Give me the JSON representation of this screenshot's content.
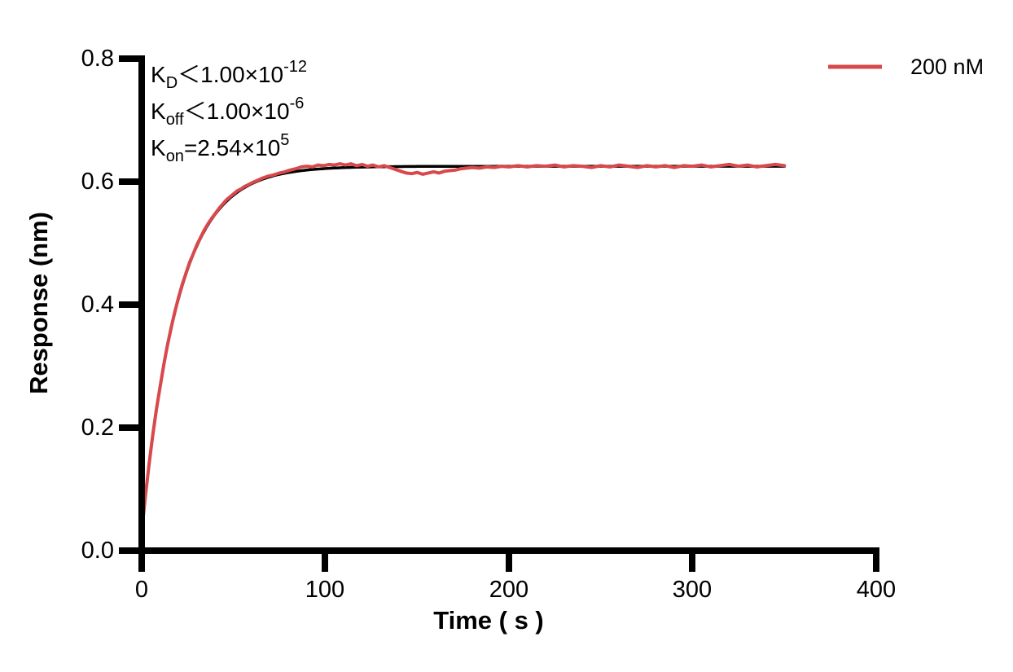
{
  "chart_data": {
    "type": "line",
    "title": "",
    "xlabel": "Time ( s )",
    "ylabel": "Response (nm)",
    "xlim": [
      0,
      400
    ],
    "ylim": [
      0.0,
      0.8
    ],
    "grid": false,
    "x_ticks": [
      "0",
      "100",
      "200",
      "300",
      "400"
    ],
    "y_ticks": [
      "0.0",
      "0.2",
      "0.4",
      "0.6",
      "0.8"
    ],
    "legend": {
      "position": "top-right",
      "entries": [
        {
          "label": "200 nM",
          "color": "#d9484b"
        }
      ]
    },
    "annotations": [
      {
        "base": "K",
        "sub": "D",
        "rest": "＜1.00×10",
        "sup": "-12"
      },
      {
        "base": "K",
        "sub": "off",
        "rest": "＜1.00×10",
        "sup": "-6"
      },
      {
        "base": "K",
        "sub": "on",
        "rest": "=2.54×10",
        "sup": "5"
      }
    ],
    "series": [
      {
        "name": "200 nM",
        "role": "measured",
        "color": "#d9484b",
        "points": [
          [
            0,
            0.03
          ],
          [
            2,
            0.088
          ],
          [
            4,
            0.14
          ],
          [
            6,
            0.187
          ],
          [
            8,
            0.229
          ],
          [
            10,
            0.266
          ],
          [
            12,
            0.302
          ],
          [
            14,
            0.334
          ],
          [
            16,
            0.362
          ],
          [
            18,
            0.388
          ],
          [
            20,
            0.411
          ],
          [
            22,
            0.432
          ],
          [
            24,
            0.45
          ],
          [
            26,
            0.468
          ],
          [
            28,
            0.482
          ],
          [
            30,
            0.497
          ],
          [
            32,
            0.509
          ],
          [
            34,
            0.521
          ],
          [
            36,
            0.531
          ],
          [
            38,
            0.54
          ],
          [
            40,
            0.548
          ],
          [
            42,
            0.556
          ],
          [
            44,
            0.563
          ],
          [
            46,
            0.57
          ],
          [
            48,
            0.575
          ],
          [
            50,
            0.58
          ],
          [
            52,
            0.585
          ],
          [
            54,
            0.588
          ],
          [
            56,
            0.592
          ],
          [
            58,
            0.595
          ],
          [
            60,
            0.598
          ],
          [
            63,
            0.602
          ],
          [
            66,
            0.606
          ],
          [
            69,
            0.609
          ],
          [
            72,
            0.611
          ],
          [
            75,
            0.614
          ],
          [
            78,
            0.616
          ],
          [
            81,
            0.619
          ],
          [
            84,
            0.621
          ],
          [
            87,
            0.624
          ],
          [
            90,
            0.625
          ],
          [
            93,
            0.624
          ],
          [
            96,
            0.627
          ],
          [
            99,
            0.626
          ],
          [
            102,
            0.628
          ],
          [
            105,
            0.627
          ],
          [
            108,
            0.629
          ],
          [
            111,
            0.627
          ],
          [
            114,
            0.629
          ],
          [
            117,
            0.626
          ],
          [
            120,
            0.628
          ],
          [
            123,
            0.625
          ],
          [
            126,
            0.627
          ],
          [
            129,
            0.624
          ],
          [
            132,
            0.626
          ],
          [
            135,
            0.623
          ],
          [
            138,
            0.62
          ],
          [
            141,
            0.617
          ],
          [
            144,
            0.614
          ],
          [
            147,
            0.613
          ],
          [
            150,
            0.615
          ],
          [
            153,
            0.612
          ],
          [
            156,
            0.614
          ],
          [
            159,
            0.616
          ],
          [
            162,
            0.614
          ],
          [
            165,
            0.617
          ],
          [
            168,
            0.618
          ],
          [
            171,
            0.619
          ],
          [
            174,
            0.621
          ],
          [
            177,
            0.622
          ],
          [
            180,
            0.623
          ],
          [
            184,
            0.622
          ],
          [
            188,
            0.624
          ],
          [
            192,
            0.623
          ],
          [
            196,
            0.625
          ],
          [
            200,
            0.624
          ],
          [
            205,
            0.626
          ],
          [
            210,
            0.624
          ],
          [
            215,
            0.626
          ],
          [
            220,
            0.625
          ],
          [
            225,
            0.627
          ],
          [
            230,
            0.624
          ],
          [
            235,
            0.626
          ],
          [
            240,
            0.625
          ],
          [
            245,
            0.623
          ],
          [
            250,
            0.626
          ],
          [
            255,
            0.624
          ],
          [
            260,
            0.627
          ],
          [
            265,
            0.625
          ],
          [
            270,
            0.623
          ],
          [
            275,
            0.626
          ],
          [
            280,
            0.624
          ],
          [
            285,
            0.626
          ],
          [
            290,
            0.623
          ],
          [
            295,
            0.626
          ],
          [
            300,
            0.625
          ],
          [
            305,
            0.627
          ],
          [
            310,
            0.624
          ],
          [
            315,
            0.626
          ],
          [
            320,
            0.628
          ],
          [
            325,
            0.625
          ],
          [
            330,
            0.627
          ],
          [
            335,
            0.624
          ],
          [
            340,
            0.626
          ],
          [
            345,
            0.628
          ],
          [
            350,
            0.626
          ]
        ]
      },
      {
        "name": "fit",
        "role": "fit",
        "color": "#000000",
        "model": "one-phase-association",
        "y0": 0.03,
        "plateau": 0.625,
        "kobs": 0.0508,
        "t_start": 0,
        "t_end": 350
      }
    ]
  },
  "colors": {
    "axis": "#000000",
    "background": "#ffffff",
    "series_red": "#d9484b",
    "fit_black": "#000000"
  }
}
